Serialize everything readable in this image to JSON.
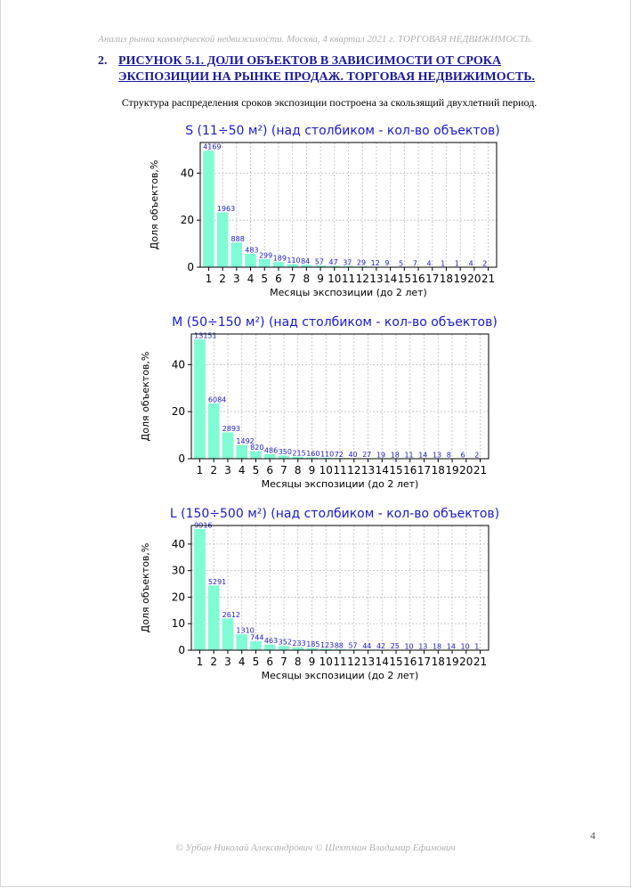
{
  "header": "Анализ рынка коммерческой недвижимости.  Москва,  4 квартал 2021 г.  ТОРГОВАЯ НЕДВИЖИМОСТЬ.",
  "heading": {
    "number": "2.",
    "text": "РИСУНОК 5.1. ДОЛИ ОБЪЕКТОВ В ЗАВИСИМОСТИ ОТ СРОКА ЭКСПОЗИЦИИ НА РЫНКЕ ПРОДАЖ.  ТОРГОВАЯ НЕДВИЖИМОСТЬ."
  },
  "note": "Структура распределения сроков экспозиции построена за скользящий двухлетний период.",
  "page_number": "4",
  "footer": "© Урбан Николай Александрович   © Шехтман Владимир Ефимович",
  "colors": {
    "bar": "#7ffcd4",
    "title": "#1a1acc",
    "grid": "#bdbdbd"
  },
  "chart_data": [
    {
      "type": "bar",
      "title": "S (11÷50 м²) (над столбиком - кол-во объектов)",
      "xlabel": "Месяцы экспозиции (до 2 лет)",
      "ylabel": "Доля объектов,%",
      "categories": [
        "1",
        "2",
        "3",
        "4",
        "5",
        "6",
        "7",
        "8",
        "9",
        "10",
        "11",
        "12",
        "13",
        "14",
        "15",
        "16",
        "17",
        "18",
        "19",
        "20",
        "21"
      ],
      "values": [
        49.5,
        23.3,
        10.5,
        5.7,
        3.5,
        2.2,
        1.3,
        1.0,
        0.68,
        0.56,
        0.44,
        0.34,
        0.14,
        0.11,
        0.06,
        0.08,
        0.05,
        0.01,
        0.01,
        0.05,
        0.02
      ],
      "labels": [
        "4169",
        "1963",
        "888",
        "483",
        "299",
        "189",
        "110",
        "84",
        "57",
        "47",
        "37",
        "29",
        "12",
        "9",
        "5",
        "7",
        "4",
        "1",
        "1",
        "4",
        "2"
      ],
      "ylim": [
        0,
        53
      ],
      "yticks": [
        0,
        20,
        40
      ],
      "grid": true
    },
    {
      "type": "bar",
      "title": "M (50÷150 м²) (над столбиком - кол-во объектов)",
      "xlabel": "Месяцы экспозиции (до 2 лет)",
      "ylabel": "Доля объектов,%",
      "categories": [
        "1",
        "2",
        "3",
        "4",
        "5",
        "6",
        "7",
        "8",
        "9",
        "10",
        "11",
        "12",
        "13",
        "14",
        "15",
        "16",
        "17",
        "18",
        "19",
        "20",
        "21"
      ],
      "values": [
        50.7,
        23.5,
        11.2,
        5.8,
        3.2,
        1.9,
        1.35,
        0.83,
        0.62,
        0.42,
        0.28,
        0.15,
        0.1,
        0.07,
        0.07,
        0.04,
        0.05,
        0.05,
        0.03,
        0.02,
        0.01
      ],
      "labels": [
        "13151",
        "6084",
        "2893",
        "1492",
        "820",
        "486",
        "350",
        "215",
        "160",
        "110",
        "72",
        "40",
        "27",
        "19",
        "18",
        "11",
        "14",
        "13",
        "8",
        "6",
        "2"
      ],
      "ylim": [
        0,
        53
      ],
      "yticks": [
        0,
        20,
        40
      ],
      "grid": true
    },
    {
      "type": "bar",
      "title": "L (150÷500 м²) (над столбиком - кол-во объектов)",
      "xlabel": "Месяцы экспозиции (до 2 лет)",
      "ylabel": "Доля объектов,%",
      "categories": [
        "1",
        "2",
        "3",
        "4",
        "5",
        "6",
        "7",
        "8",
        "9",
        "10",
        "11",
        "12",
        "13",
        "14",
        "15",
        "16",
        "17",
        "18",
        "19",
        "20",
        "21"
      ],
      "values": [
        45.7,
        24.4,
        12.0,
        6.0,
        3.4,
        2.1,
        1.6,
        1.1,
        0.85,
        0.57,
        0.4,
        0.26,
        0.2,
        0.19,
        0.12,
        0.05,
        0.06,
        0.08,
        0.06,
        0.05,
        0.01
      ],
      "labels": [
        "9916",
        "5291",
        "2612",
        "1310",
        "744",
        "463",
        "352",
        "233",
        "185",
        "123",
        "88",
        "57",
        "44",
        "42",
        "25",
        "10",
        "13",
        "18",
        "14",
        "10",
        "1"
      ],
      "ylim": [
        0,
        47
      ],
      "yticks": [
        0,
        10,
        20,
        30,
        40
      ],
      "grid": true
    }
  ]
}
